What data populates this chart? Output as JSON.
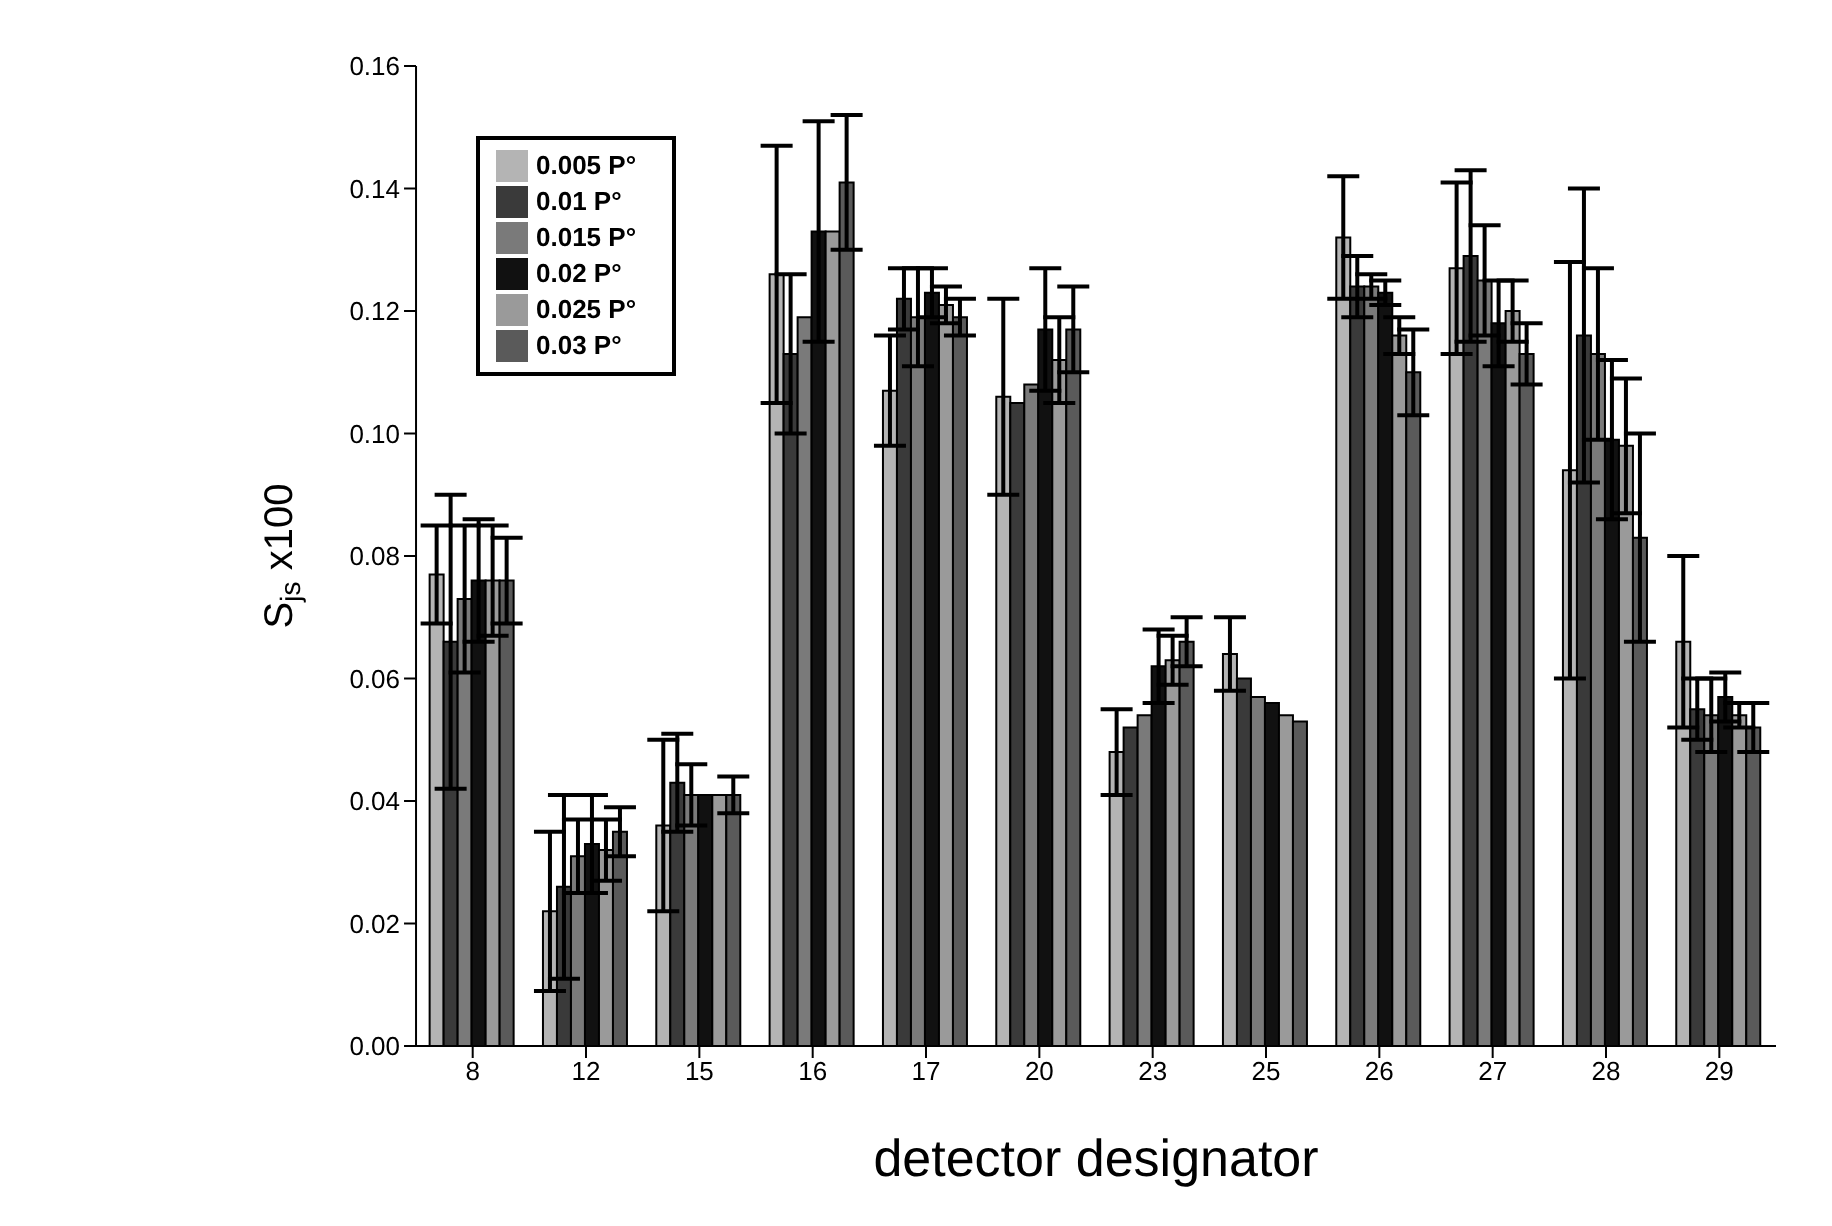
{
  "chart_data": {
    "type": "bar",
    "xlabel": "detector designator",
    "ylabel": "S$_{js}$ x100",
    "categories": [
      "8",
      "12",
      "15",
      "16",
      "17",
      "20",
      "23",
      "25",
      "26",
      "27",
      "28",
      "29"
    ],
    "series": [
      {
        "name": "0.005 P°",
        "color": "#b4b4b4",
        "values": [
          0.077,
          0.022,
          0.036,
          0.126,
          0.107,
          0.106,
          0.048,
          0.064,
          0.132,
          0.127,
          0.094,
          0.066
        ],
        "errors": [
          0.008,
          0.013,
          0.014,
          0.021,
          0.009,
          0.016,
          0.007,
          0.006,
          0.01,
          0.014,
          0.034,
          0.014
        ]
      },
      {
        "name": "0.01 P°",
        "color": "#3a3a3a",
        "values": [
          0.066,
          0.026,
          0.043,
          0.113,
          0.122,
          0.105,
          0.052,
          0.06,
          0.124,
          0.129,
          0.116,
          0.055
        ],
        "errors": [
          0.024,
          0.015,
          0.008,
          0.013,
          0.005,
          null,
          null,
          null,
          0.005,
          0.014,
          0.024,
          0.005
        ]
      },
      {
        "name": "0.015 P°",
        "color": "#7a7a7a",
        "values": [
          0.073,
          0.031,
          0.041,
          0.119,
          0.119,
          0.108,
          0.054,
          0.057,
          0.124,
          0.125,
          0.113,
          0.054
        ],
        "errors": [
          0.012,
          0.006,
          0.005,
          null,
          0.008,
          null,
          null,
          null,
          0.002,
          0.009,
          0.014,
          0.006
        ]
      },
      {
        "name": "0.02 P°",
        "color": "#111111",
        "values": [
          0.076,
          0.033,
          0.041,
          0.133,
          0.123,
          0.117,
          0.062,
          0.056,
          0.123,
          0.118,
          0.099,
          0.057
        ],
        "errors": [
          0.01,
          0.008,
          null,
          0.018,
          0.004,
          0.01,
          0.006,
          null,
          0.002,
          0.007,
          0.013,
          0.004
        ]
      },
      {
        "name": "0.025 P°",
        "color": "#9a9a9a",
        "values": [
          0.076,
          0.032,
          0.041,
          0.133,
          0.121,
          0.112,
          0.063,
          0.054,
          0.116,
          0.12,
          0.098,
          0.054
        ],
        "errors": [
          0.009,
          0.005,
          null,
          null,
          0.003,
          0.007,
          0.004,
          null,
          0.003,
          0.005,
          0.011,
          0.002
        ]
      },
      {
        "name": "0.03 P°",
        "color": "#5a5a5a",
        "values": [
          0.076,
          0.035,
          0.041,
          0.141,
          0.119,
          0.117,
          0.066,
          0.053,
          0.11,
          0.113,
          0.083,
          0.052
        ],
        "errors": [
          0.007,
          0.004,
          0.003,
          0.011,
          0.003,
          0.007,
          0.004,
          null,
          0.007,
          0.005,
          0.017,
          0.004
        ]
      }
    ],
    "ylim": [
      0,
      0.16
    ],
    "yticks": [
      {
        "value": 0,
        "label": "0.00"
      },
      {
        "value": 0.02,
        "label": "0.02"
      },
      {
        "value": 0.04,
        "label": "0.04"
      },
      {
        "value": 0.06,
        "label": "0.06"
      },
      {
        "value": 0.08,
        "label": "0.08"
      },
      {
        "value": 0.1,
        "label": "0.10"
      },
      {
        "value": 0.12,
        "label": "0.12"
      },
      {
        "value": 0.14,
        "label": "0.14"
      },
      {
        "value": 0.16,
        "label": "0.16"
      }
    ],
    "legend": "top left"
  }
}
